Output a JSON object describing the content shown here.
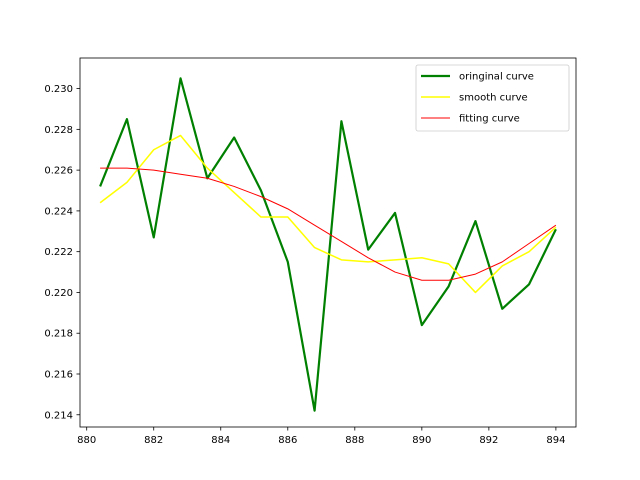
{
  "chart_data": {
    "type": "line",
    "title": "",
    "xlabel": "",
    "ylabel": "",
    "xlim": [
      879.8,
      894.6
    ],
    "ylim": [
      0.2134,
      0.2315
    ],
    "x_ticks": [
      880,
      882,
      884,
      886,
      888,
      890,
      892,
      894
    ],
    "x_tick_labels": [
      "880",
      "882",
      "884",
      "886",
      "888",
      "890",
      "892",
      "894"
    ],
    "y_ticks": [
      0.214,
      0.216,
      0.218,
      0.22,
      0.222,
      0.224,
      0.226,
      0.228,
      0.23
    ],
    "y_tick_labels": [
      "0.214",
      "0.216",
      "0.218",
      "0.220",
      "0.222",
      "0.224",
      "0.226",
      "0.228",
      "0.230"
    ],
    "grid": false,
    "legend_position": "top-right",
    "x": [
      880.4,
      881.2,
      882.0,
      882.8,
      883.6,
      884.4,
      885.2,
      886.0,
      886.8,
      887.6,
      888.4,
      889.2,
      890.0,
      890.8,
      891.6,
      892.4,
      893.2,
      894.0
    ],
    "series": [
      {
        "name": "oringinal curve",
        "color": "#008000",
        "values": [
          0.2252,
          0.2285,
          0.2227,
          0.2305,
          0.2256,
          0.2276,
          0.225,
          0.2215,
          0.2142,
          0.2284,
          0.2221,
          0.2239,
          0.2184,
          0.2203,
          0.2235,
          0.2192,
          0.2204,
          0.2231
        ]
      },
      {
        "name": "smooth curve",
        "color": "#ffff00",
        "values": [
          0.2244,
          0.2254,
          0.227,
          0.2277,
          0.2261,
          0.2249,
          0.2237,
          0.2237,
          0.2222,
          0.2216,
          0.2215,
          0.2216,
          0.2217,
          0.2214,
          0.22,
          0.2213,
          0.222,
          0.2232
        ]
      },
      {
        "name": "fitting curve",
        "color": "#ff0000",
        "values": [
          0.2261,
          0.2261,
          0.226,
          0.2258,
          0.2256,
          0.2252,
          0.2247,
          0.2241,
          0.2233,
          0.2225,
          0.2217,
          0.221,
          0.2206,
          0.2206,
          0.2209,
          0.2215,
          0.2224,
          0.2233
        ]
      }
    ]
  }
}
